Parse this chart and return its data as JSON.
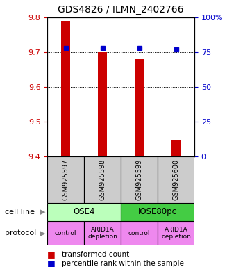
{
  "title": "GDS4826 / ILMN_2402766",
  "samples": [
    "GSM925597",
    "GSM925598",
    "GSM925599",
    "GSM925600"
  ],
  "bar_values": [
    9.79,
    9.7,
    9.68,
    9.445
  ],
  "bar_bottom": 9.4,
  "percentile_values": [
    78,
    78,
    78,
    77
  ],
  "percentile_scale_min": 0,
  "percentile_scale_max": 100,
  "ylim": [
    9.4,
    9.8
  ],
  "yticks": [
    9.4,
    9.5,
    9.6,
    9.7,
    9.8
  ],
  "right_yticks": [
    0,
    25,
    50,
    75,
    100
  ],
  "right_yticklabels": [
    "0",
    "25",
    "50",
    "75",
    "100%"
  ],
  "bar_color": "#cc0000",
  "percentile_color": "#0000cc",
  "cell_lines": [
    {
      "label": "OSE4",
      "span": [
        0,
        2
      ],
      "color": "#bbffbb"
    },
    {
      "label": "IOSE80pc",
      "span": [
        2,
        4
      ],
      "color": "#44cc44"
    }
  ],
  "protocols": [
    {
      "label": "control",
      "span": [
        0,
        1
      ],
      "color": "#ee88ee"
    },
    {
      "label": "ARID1A\ndepletion",
      "span": [
        1,
        2
      ],
      "color": "#ee88ee"
    },
    {
      "label": "control",
      "span": [
        2,
        3
      ],
      "color": "#ee88ee"
    },
    {
      "label": "ARID1A\ndepletion",
      "span": [
        3,
        4
      ],
      "color": "#ee88ee"
    }
  ],
  "legend_bar_label": "transformed count",
  "legend_pct_label": "percentile rank within the sample",
  "bar_color_left_axis": "#cc0000",
  "pct_color_right_axis": "#0000cc",
  "sample_box_color": "#cccccc",
  "bar_width": 0.25
}
